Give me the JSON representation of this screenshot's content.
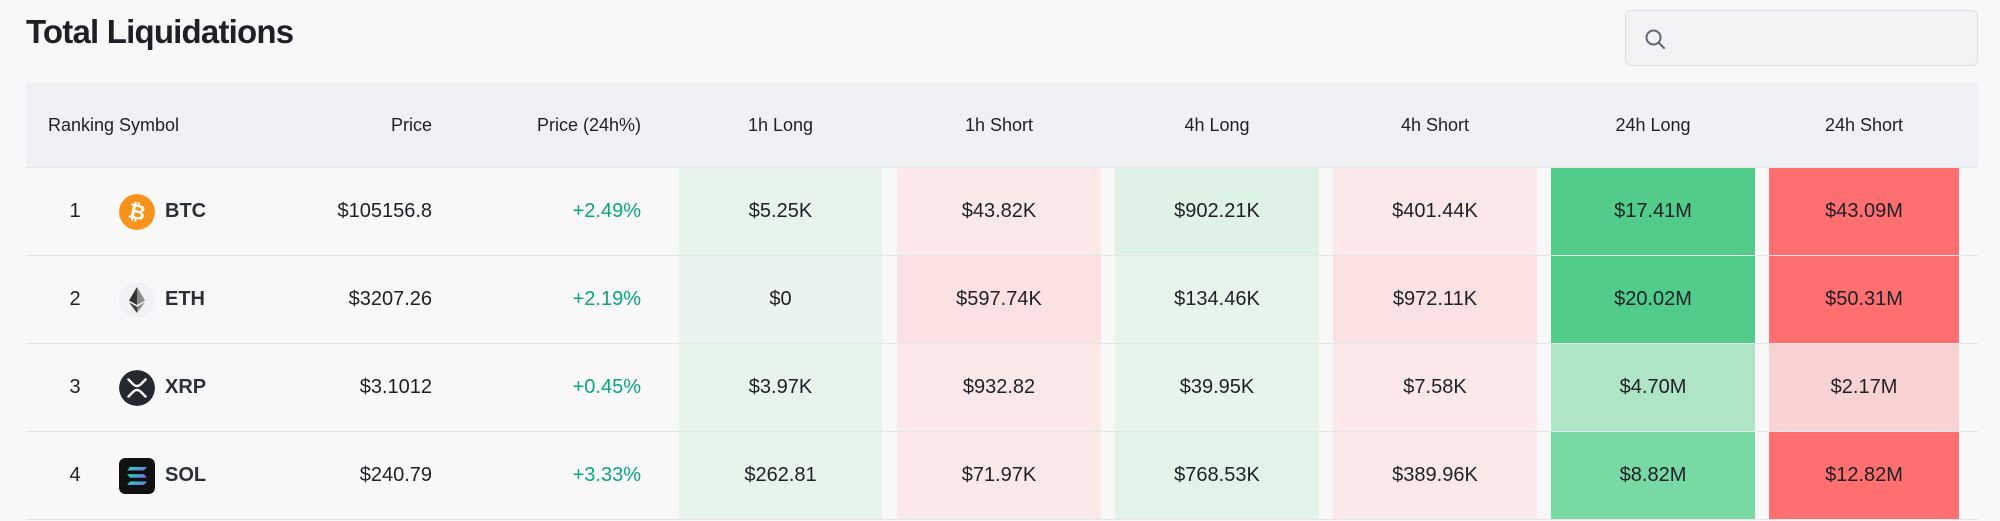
{
  "page": {
    "title": "Total Liquidations"
  },
  "search": {
    "placeholder": "",
    "value": ""
  },
  "table": {
    "headers": {
      "ranking": "Ranking",
      "symbol": "Symbol",
      "price": "Price",
      "price_change": "Price (24h%)",
      "h1_long": "1h Long",
      "h1_short": "1h Short",
      "h4_long": "4h Long",
      "h4_short": "4h Short",
      "h24_long": "24h Long",
      "h24_short": "24h Short"
    },
    "rows": [
      {
        "rank": "1",
        "symbol": "BTC",
        "icon": "bitcoin-icon",
        "price": "$105156.8",
        "change": "+2.49%",
        "h1_long": "$5.25K",
        "h1_short": "$43.82K",
        "h4_long": "$902.21K",
        "h4_short": "$401.44K",
        "h24_long": "$17.41M",
        "h24_short": "$43.09M"
      },
      {
        "rank": "2",
        "symbol": "ETH",
        "icon": "ethereum-icon",
        "price": "$3207.26",
        "change": "+2.19%",
        "h1_long": "$0",
        "h1_short": "$597.74K",
        "h4_long": "$134.46K",
        "h4_short": "$972.11K",
        "h24_long": "$20.02M",
        "h24_short": "$50.31M"
      },
      {
        "rank": "3",
        "symbol": "XRP",
        "icon": "xrp-icon",
        "price": "$3.1012",
        "change": "+0.45%",
        "h1_long": "$3.97K",
        "h1_short": "$932.82",
        "h4_long": "$39.95K",
        "h4_short": "$7.58K",
        "h24_long": "$4.70M",
        "h24_short": "$2.17M"
      },
      {
        "rank": "4",
        "symbol": "SOL",
        "icon": "solana-icon",
        "price": "$240.79",
        "change": "+3.33%",
        "h1_long": "$262.81",
        "h1_short": "$71.97K",
        "h4_long": "$768.53K",
        "h4_short": "$389.96K",
        "h24_long": "$8.82M",
        "h24_short": "$12.82M"
      }
    ]
  },
  "colors": {
    "positive_change": "#0ca678",
    "long_light": "#e7f4ec",
    "short_light": "#fbe9ea",
    "long_strong": "#51cc8b",
    "short_strong": "#ff6f6f",
    "long_mid": "#ade5c5",
    "short_mid": "#f9d3d3",
    "long_medium_strong": "#79d9a4",
    "btc_orange": "#f7931a"
  }
}
